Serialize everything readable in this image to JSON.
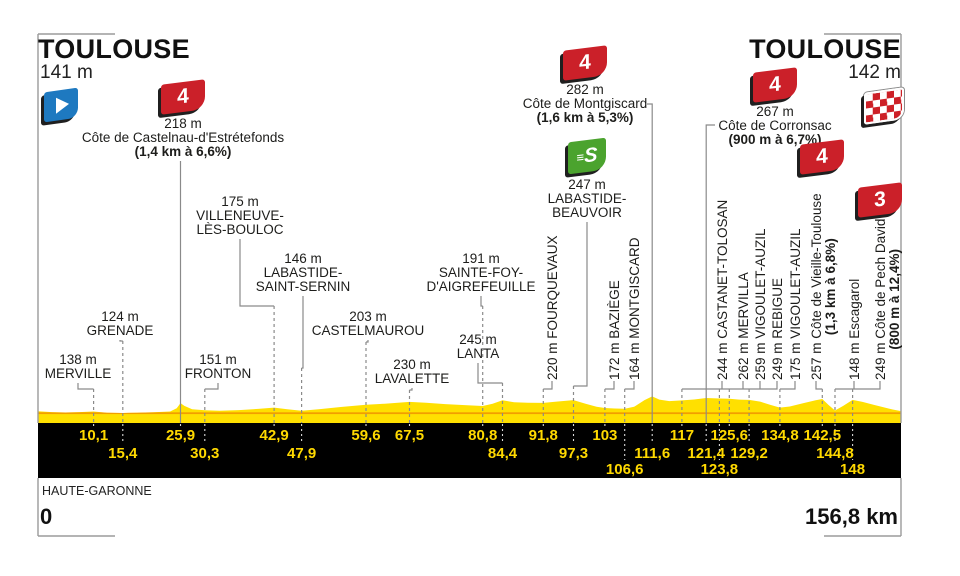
{
  "header": {
    "start_title": "TOULOUSE",
    "start_elevation": "141 m",
    "finish_title": "TOULOUSE",
    "finish_elevation": "142 m"
  },
  "footer": {
    "region": "HAUTE-GARONNE",
    "start_km_label": "0",
    "total_distance_label": "156,8 km"
  },
  "colors": {
    "profile_yellow": "#FFE000",
    "profile_orange_line": "#F29E00",
    "strip_black": "#000000",
    "km_number_yellow": "#FFD900",
    "badge_red": "#CB2029",
    "sprint_green": "#4BA32E",
    "flag_blue": "#1E79C0",
    "connector_gray": "#8A8A8A",
    "text_dark": "#1D1D1B"
  },
  "icons": {
    "start_flag": "start-flag-icon",
    "finish_flag": "checkered-flag-icon",
    "category_badge": "climb-category-badge",
    "sprint_badge": "sprint-badge"
  },
  "chart_data": {
    "type": "area",
    "x_unit": "km",
    "y_unit": "m",
    "xlim": [
      0,
      156.8
    ],
    "start": {
      "name": "TOULOUSE",
      "elevation_m": 141,
      "km": 0
    },
    "finish": {
      "name": "TOULOUSE",
      "elevation_m": 142,
      "km": 156.8
    },
    "region": "HAUTE-GARONNE",
    "markers": [
      {
        "km": 10.1,
        "km_label": "10,1",
        "elevation_label": "138 m",
        "name": "MERVILLE",
        "kind": "town",
        "strip_row": 1
      },
      {
        "km": 15.4,
        "km_label": "15,4",
        "elevation_label": "124 m",
        "name": "GRENADE",
        "kind": "town",
        "strip_row": 2
      },
      {
        "km": 25.9,
        "km_label": "25,9",
        "elevation_label": "218 m",
        "name": "Côte de Castelnau-d'Estrétefonds",
        "kind": "climb",
        "category": "4",
        "stats": "(1,4 km à 6,6%)",
        "strip_row": 1
      },
      {
        "km": 30.3,
        "km_label": "30,3",
        "elevation_label": "151 m",
        "name": "FRONTON",
        "kind": "town",
        "strip_row": 2
      },
      {
        "km": 42.9,
        "km_label": "42,9",
        "elevation_label": "175 m",
        "name": "VILLENEUVE-LÈS-BOULOC",
        "kind": "town",
        "strip_row": 1
      },
      {
        "km": 47.9,
        "km_label": "47,9",
        "elevation_label": "146 m",
        "name": "LABASTIDE-SAINT-SERNIN",
        "kind": "town",
        "strip_row": 2
      },
      {
        "km": 59.6,
        "km_label": "59,6",
        "elevation_label": "203 m",
        "name": "CASTELMAUROU",
        "kind": "town",
        "strip_row": 1
      },
      {
        "km": 67.5,
        "km_label": "67,5",
        "elevation_label": "230 m",
        "name": "LAVALETTE",
        "kind": "town",
        "strip_row": 1
      },
      {
        "km": 80.8,
        "km_label": "80,8",
        "elevation_label": "191 m",
        "name": "SAINTE-FOY-D'AIGREFEUILLE",
        "kind": "town",
        "strip_row": 1
      },
      {
        "km": 84.4,
        "km_label": "84,4",
        "elevation_label": "245 m",
        "name": "LANTA",
        "kind": "town",
        "strip_row": 2
      },
      {
        "km": 91.8,
        "km_label": "91,8",
        "elevation_label": "220 m",
        "name": "FOURQUEVAUX",
        "kind": "town",
        "strip_row": 1
      },
      {
        "km": 97.3,
        "km_label": "97,3",
        "elevation_label": "247 m",
        "name": "LABASTIDE-BEAUVOIR",
        "kind": "sprint",
        "strip_row": 2
      },
      {
        "km": 103,
        "km_label": "103",
        "elevation_label": "172 m",
        "name": "BAZIÈGE",
        "kind": "town",
        "strip_row": 1
      },
      {
        "km": 106.6,
        "km_label": "106,6",
        "elevation_label": "164 m",
        "name": "MONTGISCARD",
        "kind": "town",
        "strip_row": 3
      },
      {
        "km": 111.6,
        "km_label": "111,6",
        "elevation_label": "282 m",
        "name": "Côte de Montgiscard",
        "kind": "climb",
        "category": "4",
        "stats": "(1,6 km à 5,3%)",
        "strip_row": 2
      },
      {
        "km": 117,
        "km_label": "117",
        "elevation_label": "244 m",
        "name": "CASTANET-TOLOSAN",
        "kind": "town",
        "strip_row": 1
      },
      {
        "km": 121.4,
        "km_label": "121,4",
        "elevation_label": "267 m",
        "name": "Côte de Corronsac",
        "kind": "climb",
        "category": "4",
        "stats": "(900 m à 6,7%)",
        "strip_row": 2
      },
      {
        "km": 123.8,
        "km_label": "123,8",
        "elevation_label": "262 m",
        "name": "MERVILLA",
        "kind": "town",
        "strip_row": 3
      },
      {
        "km": 125.6,
        "km_label": "125,6",
        "elevation_label": "259 m",
        "name": "VIGOULET-AUZIL",
        "kind": "town",
        "strip_row": 1
      },
      {
        "km": 129.2,
        "km_label": "129,2",
        "elevation_label": "249 m",
        "name": "REBIGUE",
        "kind": "town",
        "strip_row": 2
      },
      {
        "km": 134.8,
        "km_label": "134,8",
        "elevation_label": "175 m",
        "name": "VIGOULET-AUZIL",
        "kind": "town",
        "strip_row": 1
      },
      {
        "km": 142.5,
        "km_label": "142,5",
        "elevation_label": "257 m",
        "name": "Côte de Vieille-Toulouse",
        "kind": "climb",
        "category": "4",
        "stats": "(1,3 km à 6,8%)",
        "strip_row": 1
      },
      {
        "km": 144.8,
        "km_label": "144,8",
        "elevation_label": "148 m",
        "name": "Escagarol",
        "kind": "town",
        "strip_row": 2
      },
      {
        "km": 148,
        "km_label": "148",
        "elevation_label": "249 m",
        "name": "Côte de Pech David",
        "kind": "climb",
        "category": "3",
        "stats": "(800 m à 12,4%)",
        "strip_row": 3
      }
    ],
    "profile_points": [
      [
        0,
        141
      ],
      [
        2.5,
        133
      ],
      [
        5,
        129
      ],
      [
        7.5,
        133
      ],
      [
        10.1,
        138
      ],
      [
        12.5,
        126
      ],
      [
        15.4,
        124
      ],
      [
        18,
        127
      ],
      [
        21,
        131
      ],
      [
        24,
        138
      ],
      [
        25.2,
        170
      ],
      [
        25.9,
        218
      ],
      [
        26.6,
        192
      ],
      [
        28,
        160
      ],
      [
        30.3,
        151
      ],
      [
        33,
        146
      ],
      [
        36.5,
        152
      ],
      [
        40,
        163
      ],
      [
        42.9,
        175
      ],
      [
        45.3,
        159
      ],
      [
        47.9,
        146
      ],
      [
        51,
        159
      ],
      [
        55,
        181
      ],
      [
        59.6,
        203
      ],
      [
        63,
        213
      ],
      [
        67.5,
        230
      ],
      [
        70.5,
        221
      ],
      [
        74,
        209
      ],
      [
        78,
        197
      ],
      [
        80.8,
        191
      ],
      [
        82.6,
        212
      ],
      [
        84.4,
        245
      ],
      [
        86.5,
        227
      ],
      [
        89,
        221
      ],
      [
        91.8,
        220
      ],
      [
        94.2,
        233
      ],
      [
        97.3,
        247
      ],
      [
        99.5,
        213
      ],
      [
        101.5,
        184
      ],
      [
        103,
        172
      ],
      [
        104.8,
        167
      ],
      [
        106.6,
        164
      ],
      [
        108.3,
        183
      ],
      [
        110.2,
        247
      ],
      [
        111.6,
        282
      ],
      [
        112.9,
        252
      ],
      [
        114.7,
        237
      ],
      [
        117,
        244
      ],
      [
        119.2,
        253
      ],
      [
        121.4,
        267
      ],
      [
        123.8,
        262
      ],
      [
        125.6,
        259
      ],
      [
        127.4,
        252
      ],
      [
        129.2,
        249
      ],
      [
        131.2,
        233
      ],
      [
        133,
        203
      ],
      [
        134.8,
        175
      ],
      [
        136.6,
        186
      ],
      [
        139,
        216
      ],
      [
        141.3,
        246
      ],
      [
        142.5,
        257
      ],
      [
        143.6,
        203
      ],
      [
        144.8,
        148
      ],
      [
        146.3,
        192
      ],
      [
        148,
        249
      ],
      [
        149.8,
        230
      ],
      [
        151.8,
        202
      ],
      [
        153.8,
        176
      ],
      [
        155.3,
        157
      ],
      [
        156.8,
        142
      ]
    ]
  }
}
